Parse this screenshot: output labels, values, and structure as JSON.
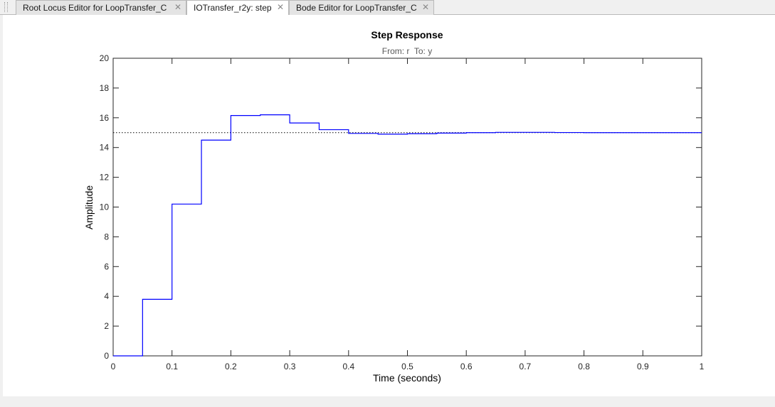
{
  "tabs": [
    {
      "label": "Root Locus Editor for LoopTransfer_C",
      "close": "✕",
      "active": false
    },
    {
      "label": "IOTransfer_r2y: step",
      "close": "✕",
      "active": true
    },
    {
      "label": "Bode Editor for LoopTransfer_C",
      "close": "✕",
      "active": false
    }
  ],
  "colors": {
    "line": "#0000ff",
    "steady_state": "#000000",
    "axes": "#262626",
    "tick_text": "#262626",
    "subtitle": "#5a5a5a"
  },
  "chart_data": {
    "type": "line",
    "title": "Step Response",
    "subtitle": "From: r  To: y",
    "xlabel": "Time (seconds)",
    "ylabel": "Amplitude",
    "xlim": [
      0,
      1
    ],
    "ylim": [
      0,
      20
    ],
    "xticks": [
      0,
      0.1,
      0.2,
      0.3,
      0.4,
      0.5,
      0.6,
      0.7,
      0.8,
      0.9,
      1
    ],
    "xtick_labels": [
      "0",
      "0.1",
      "0.2",
      "0.3",
      "0.4",
      "0.5",
      "0.6",
      "0.7",
      "0.8",
      "0.9",
      "1"
    ],
    "yticks": [
      0,
      2,
      4,
      6,
      8,
      10,
      12,
      14,
      16,
      18,
      20
    ],
    "ytick_labels": [
      "0",
      "2",
      "4",
      "6",
      "8",
      "10",
      "12",
      "14",
      "16",
      "18",
      "20"
    ],
    "grid": false,
    "step_style": "zero-order-hold",
    "sample_time": 0.05,
    "series": [
      {
        "x": [
          0,
          0.05,
          0.1,
          0.15,
          0.2,
          0.25,
          0.3,
          0.35,
          0.4,
          0.45,
          0.5,
          0.55,
          0.6,
          0.65,
          0.7,
          0.75,
          0.8,
          0.85,
          0.9,
          0.95
        ],
        "y": [
          0,
          3.8,
          10.2,
          14.5,
          16.15,
          16.2,
          15.65,
          15.2,
          14.95,
          14.9,
          14.93,
          14.97,
          15.0,
          15.02,
          15.02,
          15.01,
          15.0,
          15.0,
          15.0,
          15.0
        ]
      }
    ],
    "steady_state": 15.0
  }
}
